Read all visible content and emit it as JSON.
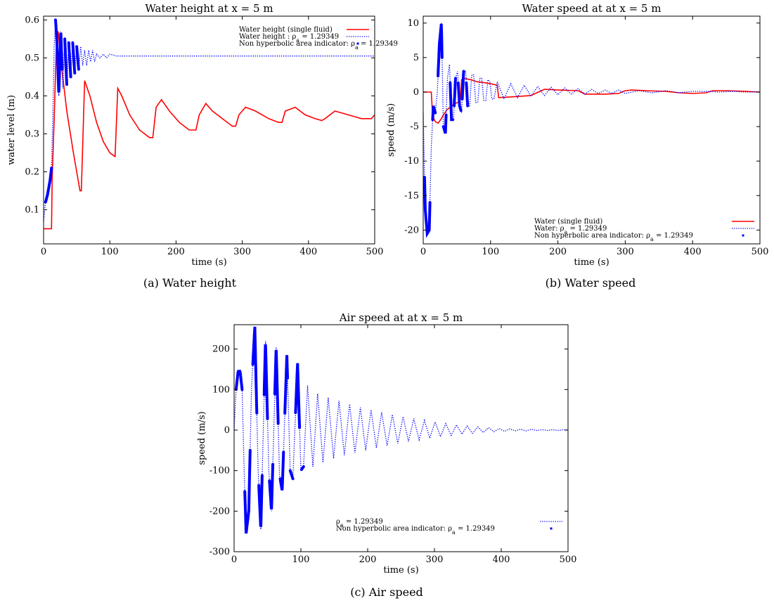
{
  "chart_data": [
    {
      "type": "line",
      "title": "Water height at x = 5 m",
      "xlabel": "time (s)",
      "ylabel": "water level (m)",
      "xlim": [
        0,
        500
      ],
      "ylim": [
        0.01,
        0.61
      ],
      "xticks": [
        0,
        100,
        200,
        300,
        400,
        500
      ],
      "yticks": [
        0.1,
        0.2,
        0.3,
        0.4,
        0.5,
        0.6
      ],
      "grid": false,
      "legend_position": "top-right",
      "caption": "(a) Water height",
      "series": [
        {
          "name": "Water height   (single fluid)",
          "style": "solid",
          "color": "#ff0000",
          "x": [
            0,
            12,
            13,
            16,
            19,
            22,
            27,
            35,
            45,
            55,
            57,
            62,
            70,
            80,
            90,
            100,
            108,
            112,
            118,
            130,
            145,
            160,
            165,
            170,
            178,
            190,
            205,
            220,
            230,
            235,
            245,
            255,
            270,
            285,
            290,
            295,
            305,
            320,
            340,
            355,
            360,
            365,
            380,
            395,
            410,
            420,
            425,
            440,
            460,
            480,
            495,
            500
          ],
          "y": [
            0.05,
            0.05,
            0.18,
            0.34,
            0.52,
            0.57,
            0.48,
            0.36,
            0.25,
            0.15,
            0.15,
            0.44,
            0.4,
            0.33,
            0.28,
            0.25,
            0.24,
            0.42,
            0.4,
            0.35,
            0.31,
            0.29,
            0.29,
            0.37,
            0.39,
            0.36,
            0.33,
            0.31,
            0.31,
            0.35,
            0.38,
            0.36,
            0.34,
            0.32,
            0.32,
            0.35,
            0.37,
            0.36,
            0.34,
            0.33,
            0.33,
            0.36,
            0.37,
            0.35,
            0.34,
            0.335,
            0.34,
            0.36,
            0.35,
            0.34,
            0.34,
            0.35
          ]
        },
        {
          "name": "Water height :  ρ_a = 1.29349",
          "style": "dotted",
          "color": "#0000ff",
          "x": [
            0,
            3,
            6,
            8,
            10,
            12,
            14,
            16,
            18,
            20,
            23,
            26,
            29,
            32,
            35,
            38,
            41,
            44,
            47,
            50,
            53,
            56,
            59,
            62,
            65,
            68,
            71,
            74,
            77,
            80,
            85,
            90,
            95,
            100,
            110,
            120,
            150,
            200,
            300,
            400,
            500
          ],
          "y": [
            0.07,
            0.12,
            0.14,
            0.16,
            0.18,
            0.21,
            0.35,
            0.53,
            0.6,
            0.55,
            0.4,
            0.57,
            0.42,
            0.55,
            0.43,
            0.54,
            0.45,
            0.54,
            0.46,
            0.53,
            0.47,
            0.53,
            0.48,
            0.52,
            0.48,
            0.52,
            0.49,
            0.52,
            0.49,
            0.51,
            0.5,
            0.51,
            0.5,
            0.51,
            0.505,
            0.505,
            0.505,
            0.505,
            0.505,
            0.505,
            0.505
          ]
        }
      ],
      "markers": {
        "name": "Non hyperbolic area indicator: ρ_a = 1.29349",
        "color": "#0000ff",
        "intervals": [
          [
            3,
            12
          ],
          [
            18,
            25
          ],
          [
            25,
            28
          ],
          [
            32,
            35
          ],
          [
            38,
            41
          ],
          [
            44,
            47
          ],
          [
            50,
            53
          ]
        ]
      }
    },
    {
      "type": "line",
      "title": "Water speed at at x = 5 m",
      "xlabel": "time (s)",
      "ylabel": "speed (m/s)",
      "xlim": [
        0,
        500
      ],
      "ylim": [
        -22,
        11
      ],
      "xticks": [
        0,
        100,
        200,
        300,
        400,
        500
      ],
      "yticks": [
        -20,
        -15,
        -10,
        -5,
        0,
        5,
        10
      ],
      "grid": false,
      "legend_position": "bottom-right",
      "caption": "(b) Water speed",
      "series": [
        {
          "name": "Water (single fluid)",
          "style": "solid",
          "color": "#ff0000",
          "x": [
            0,
            12,
            14,
            18,
            22,
            26,
            30,
            35,
            45,
            55,
            57,
            60,
            70,
            80,
            95,
            105,
            110,
            112,
            130,
            160,
            180,
            200,
            230,
            240,
            250,
            270,
            290,
            300,
            310,
            330,
            360,
            380,
            400,
            420,
            430,
            450,
            480,
            500
          ],
          "y": [
            0,
            0,
            -3.5,
            -4.3,
            -4.5,
            -4.0,
            -3.3,
            -2.6,
            -1.8,
            -1.3,
            1.8,
            2.0,
            1.8,
            1.5,
            1.3,
            1.1,
            1.0,
            -0.8,
            -0.7,
            -0.5,
            0.4,
            0.3,
            0.2,
            -0.3,
            -0.3,
            -0.3,
            -0.2,
            0.2,
            0.3,
            0.2,
            0.1,
            -0.1,
            -0.2,
            -0.1,
            0.2,
            0.2,
            0.1,
            0
          ]
        },
        {
          "name": "Water: ρ_a = 1.29349",
          "style": "dotted",
          "color": "#0000ff",
          "x": [
            0,
            3,
            6,
            9,
            12,
            15,
            18,
            21,
            24,
            27,
            30,
            33,
            36,
            39,
            42,
            45,
            48,
            51,
            54,
            57,
            60,
            63,
            66,
            69,
            72,
            75,
            78,
            81,
            84,
            87,
            90,
            93,
            96,
            99,
            102,
            105,
            110,
            120,
            130,
            140,
            150,
            160,
            170,
            180,
            190,
            200,
            210,
            220,
            230,
            240,
            250,
            260,
            270,
            280,
            290,
            300,
            320,
            340,
            360,
            380,
            400,
            420,
            440,
            460,
            480,
            500
          ],
          "y": [
            -3,
            -17,
            -20.5,
            -20,
            -8,
            -2,
            -3,
            0,
            7,
            10,
            -5,
            -6,
            2,
            4,
            -4,
            -4,
            2,
            3,
            -2,
            -3,
            3,
            3,
            -2,
            -2,
            2.5,
            2.5,
            -1.5,
            -1.5,
            2,
            2,
            -1.2,
            -1.2,
            1.8,
            1.5,
            -1,
            -1,
            1.5,
            -1,
            1.2,
            -0.8,
            1,
            -0.6,
            0.8,
            -0.5,
            0.7,
            -0.4,
            0.6,
            -0.3,
            0.5,
            -0.3,
            0.4,
            -0.2,
            0.3,
            -0.2,
            0.3,
            -0.2,
            0.2,
            -0.1,
            0.2,
            -0.1,
            0.1,
            0.1,
            0,
            0.1,
            0,
            0
          ]
        }
      ],
      "markers": {
        "name": "Non hyperbolic area indicator: ρ_a = 1.29349",
        "color": "#0000ff",
        "intervals": [
          [
            2,
            10
          ],
          [
            14,
            18
          ],
          [
            22,
            28
          ],
          [
            30,
            34
          ],
          [
            40,
            44
          ],
          [
            46,
            48
          ],
          [
            52,
            56
          ],
          [
            58,
            60
          ],
          [
            64,
            66
          ]
        ]
      }
    },
    {
      "type": "line",
      "title": "Air speed at at x = 5 m",
      "xlabel": "time (s)",
      "ylabel": "speed (m/s)",
      "xlim": [
        0,
        500
      ],
      "ylim": [
        -300,
        260
      ],
      "xticks": [
        0,
        100,
        200,
        300,
        400,
        500
      ],
      "yticks": [
        -300,
        -200,
        -100,
        0,
        100,
        200
      ],
      "grid": false,
      "legend_position": "bottom-right",
      "caption": "(c) Air speed",
      "series": [
        {
          "name": "ρ_a = 1.29349",
          "style": "dotted",
          "color": "#0000ff",
          "x": [
            0,
            3,
            6,
            9,
            12,
            15,
            18,
            22,
            26,
            31,
            36,
            40,
            47,
            52,
            56,
            63,
            68,
            72,
            79,
            84,
            88,
            95,
            100,
            104,
            110,
            118,
            125,
            133,
            141,
            149,
            157,
            165,
            173,
            181,
            189,
            197,
            205,
            213,
            221,
            229,
            237,
            245,
            253,
            261,
            269,
            277,
            285,
            293,
            301,
            309,
            317,
            325,
            333,
            341,
            349,
            357,
            365,
            373,
            381,
            389,
            397,
            405,
            413,
            421,
            429,
            437,
            445,
            453,
            461,
            469,
            477,
            485,
            493,
            500
          ],
          "y": [
            0,
            100,
            145,
            145,
            100,
            -100,
            -255,
            -200,
            100,
            255,
            -100,
            -245,
            220,
            -100,
            -200,
            205,
            -110,
            -150,
            185,
            -100,
            -120,
            165,
            -100,
            -90,
            110,
            -90,
            90,
            -80,
            80,
            -70,
            72,
            -62,
            64,
            -56,
            56,
            -50,
            50,
            -44,
            44,
            -38,
            38,
            -33,
            33,
            -28,
            28,
            -24,
            24,
            -20,
            20,
            -16,
            16,
            -13,
            13,
            -10,
            10,
            -8,
            8,
            -6,
            6,
            -4,
            4,
            -3,
            3,
            -2,
            2,
            -2,
            2,
            -1,
            1,
            -1,
            1,
            -1,
            1,
            0
          ]
        }
      ],
      "markers": {
        "name": "Non hyperbolic area indicator: ρ_a = 1.29349",
        "color": "#0000ff",
        "intervals": [
          [
            3,
            12
          ],
          [
            16,
            24
          ],
          [
            28,
            34
          ],
          [
            37,
            42
          ],
          [
            45,
            50
          ],
          [
            53,
            58
          ],
          [
            61,
            66
          ],
          [
            69,
            74
          ],
          [
            76,
            80
          ],
          [
            84,
            88
          ],
          [
            92,
            98
          ],
          [
            101,
            104
          ]
        ]
      }
    }
  ]
}
